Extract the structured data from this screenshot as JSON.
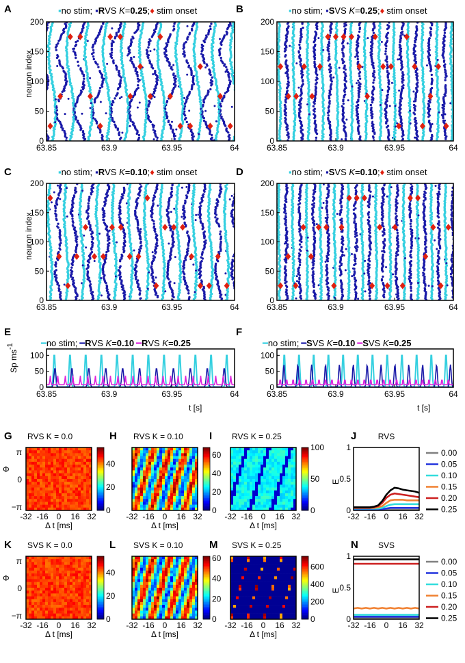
{
  "colors": {
    "nostim": "#35d0e0",
    "stim": "#1a1aa8",
    "onset": "#e02010",
    "magenta": "#dd22dd",
    "scatter_light": "#4fe3ec",
    "scatter_dark": "#1e2fc0"
  },
  "raster": [
    {
      "label": "A",
      "legend": {
        "a": "no stim;",
        "b": "R",
        "c": "VS ",
        "k": "K",
        "eq": "=",
        "val": "0.25",
        "semi": ";",
        "on": "stim onset"
      },
      "ylabel": "neuron index",
      "xticks": [
        "63.85",
        "63.9",
        "63.95",
        "64"
      ],
      "yticks": [
        "0",
        "50",
        "100",
        "150",
        "200"
      ],
      "xrange": [
        63.85,
        64
      ],
      "yrange": [
        0,
        200
      ],
      "period": 0.0145,
      "tilt": 0.0028,
      "onset_neurons": [
        25,
        75,
        125,
        175
      ]
    },
    {
      "label": "B",
      "legend": {
        "a": "no stim;",
        "b": "S",
        "c": "VS ",
        "k": "K",
        "eq": "=",
        "val": "0.25",
        "semi": ";",
        "on": "stim onset"
      },
      "ylabel": "",
      "xticks": [
        "63.85",
        "63.9",
        "63.95",
        "64"
      ],
      "yticks": [
        "0",
        "50",
        "100",
        "150",
        "200"
      ],
      "xrange": [
        63.85,
        64
      ],
      "yrange": [
        0,
        200
      ],
      "period": 0.0122,
      "tilt": 0.0008,
      "onset_neurons": [
        25,
        75,
        125,
        175
      ]
    },
    {
      "label": "C",
      "legend": {
        "a": "no stim;",
        "b": "R",
        "c": "VS ",
        "k": "K",
        "eq": "=",
        "val": "0.10",
        "semi": ";",
        "on": "stim onset"
      },
      "ylabel": "neuron index",
      "xticks": [
        "63.85",
        "63.9",
        "63.95",
        "64"
      ],
      "yticks": [
        "0",
        "50",
        "100",
        "150",
        "200"
      ],
      "xrange": [
        63.85,
        64
      ],
      "yrange": [
        0,
        200
      ],
      "period": 0.0128,
      "tilt": 0.0015,
      "onset_neurons": [
        25,
        75,
        125,
        175
      ]
    },
    {
      "label": "D",
      "legend": {
        "a": "no stim;",
        "b": "S",
        "c": "VS ",
        "k": "K",
        "eq": "=",
        "val": "0.10",
        "semi": ";",
        "on": "stim onset"
      },
      "ylabel": "",
      "xticks": [
        "63.85",
        "63.9",
        "63.95",
        "64"
      ],
      "yticks": [
        "0",
        "50",
        "100",
        "150",
        "200"
      ],
      "xrange": [
        63.85,
        64
      ],
      "yrange": [
        0,
        200
      ],
      "period": 0.0118,
      "tilt": 0.0005,
      "onset_neurons": [
        25,
        75,
        125,
        175
      ]
    }
  ],
  "rate": [
    {
      "label": "E",
      "ylabel_main": "Sp ms",
      "ylabel_sup": "-1",
      "xlabel": "t [s]",
      "legend": {
        "a": "no stim;",
        "b": "R",
        "c": "VS ",
        "k1": "K",
        "eq1": "=",
        "v1": "0.10",
        "d": "R",
        "e": "VS ",
        "k2": "K",
        "eq2": "=",
        "v2": "0.25"
      },
      "xticks": [
        "63.85",
        "63.9",
        "63.95",
        "64"
      ],
      "yticks": [
        "0",
        "50",
        "100"
      ],
      "xrange": [
        63.85,
        64
      ],
      "yrange": [
        0,
        120
      ],
      "series": [
        {
          "name": "no stim",
          "peak": 105,
          "period": 0.0125
        },
        {
          "name": "K=0.10",
          "peak": 60,
          "period": 0.0135
        },
        {
          "name": "K=0.25",
          "peak": 28,
          "period": 0.006
        }
      ]
    },
    {
      "label": "F",
      "ylabel_main": "",
      "ylabel_sup": "",
      "xlabel": "t [s]",
      "legend": {
        "a": "no stim;",
        "b": "S",
        "c": "VS ",
        "k1": "K",
        "eq1": "=",
        "v1": "0.10",
        "d": "S",
        "e": "VS ",
        "k2": "K",
        "eq2": "=",
        "v2": "0.25"
      },
      "xticks": [
        "63.85",
        "63.9",
        "63.95",
        "64"
      ],
      "yticks": [
        "0",
        "50",
        "100"
      ],
      "xrange": [
        63.85,
        64
      ],
      "yrange": [
        0,
        120
      ],
      "series": [
        {
          "name": "no stim",
          "peak": 105,
          "period": 0.0125
        },
        {
          "name": "K=0.10",
          "peak": 70,
          "period": 0.0118
        },
        {
          "name": "K=0.25",
          "peak": 20,
          "period": 0.0055
        }
      ]
    }
  ],
  "heat": [
    {
      "label": "G",
      "title": "RVS K = 0.0",
      "cbticks": [
        "0",
        "20",
        "40"
      ],
      "cbmax": 54,
      "kind": "uniform"
    },
    {
      "label": "H",
      "title": "RVS K = 0.10",
      "cbticks": [
        "0",
        "20",
        "40",
        "60"
      ],
      "cbmax": 68,
      "kind": "stripes"
    },
    {
      "label": "I",
      "title": "RVS K = 0.25",
      "cbticks": [
        "0",
        "50",
        "100"
      ],
      "cbmax": 100,
      "kind": "bands"
    },
    {
      "label": "K",
      "title": "SVS K = 0.0",
      "cbticks": [
        "0",
        "20",
        "40"
      ],
      "cbmax": 54,
      "kind": "uniform"
    },
    {
      "label": "L",
      "title": "SVS K = 0.10",
      "cbticks": [
        "0",
        "20",
        "40",
        "60"
      ],
      "cbmax": 62,
      "kind": "stripes"
    },
    {
      "label": "M",
      "title": "SVS K = 0.25",
      "cbticks": [
        "0",
        "200",
        "400",
        "600"
      ],
      "cbmax": 720,
      "kind": "lines"
    }
  ],
  "heat_axes": {
    "phi": "Φ",
    "yticks": [
      "π",
      "0",
      "−π"
    ],
    "xticks": [
      "-32",
      "-16",
      "0",
      "16",
      "32"
    ],
    "xlabel": "Δ t [ms]"
  },
  "chart_data": [
    {
      "type": "line",
      "panel": "J",
      "title": "RVS",
      "ylabel": "E",
      "x": [
        -32,
        -28,
        -24,
        -20,
        -16,
        -12,
        -8,
        -4,
        0,
        4,
        8,
        12,
        16,
        20,
        24,
        28,
        32
      ],
      "xticks": [
        "-32",
        "-16",
        "0",
        "16",
        "32"
      ],
      "yticks": [
        "0",
        "0.5",
        "1"
      ],
      "ylim": [
        0,
        1
      ],
      "series": [
        {
          "name": "0.00",
          "values": [
            0.01,
            0.01,
            0.01,
            0.01,
            0.01,
            0.01,
            0.01,
            0.01,
            0.01,
            0.01,
            0.01,
            0.01,
            0.01,
            0.01,
            0.01,
            0.01,
            0.01
          ]
        },
        {
          "name": "0.05",
          "values": [
            0.02,
            0.02,
            0.02,
            0.02,
            0.02,
            0.02,
            0.02,
            0.02,
            0.03,
            0.04,
            0.04,
            0.04,
            0.04,
            0.04,
            0.04,
            0.04,
            0.04
          ]
        },
        {
          "name": "0.10",
          "values": [
            0.03,
            0.03,
            0.03,
            0.03,
            0.03,
            0.03,
            0.03,
            0.04,
            0.07,
            0.09,
            0.1,
            0.1,
            0.1,
            0.1,
            0.1,
            0.1,
            0.1
          ]
        },
        {
          "name": "0.15",
          "values": [
            0.04,
            0.04,
            0.04,
            0.04,
            0.04,
            0.04,
            0.05,
            0.07,
            0.12,
            0.16,
            0.17,
            0.17,
            0.17,
            0.16,
            0.16,
            0.16,
            0.16
          ]
        },
        {
          "name": "0.20",
          "values": [
            0.04,
            0.04,
            0.04,
            0.04,
            0.04,
            0.05,
            0.07,
            0.12,
            0.2,
            0.25,
            0.27,
            0.26,
            0.25,
            0.24,
            0.23,
            0.22,
            0.21
          ]
        },
        {
          "name": "0.25",
          "values": [
            0.05,
            0.05,
            0.05,
            0.05,
            0.05,
            0.06,
            0.08,
            0.15,
            0.25,
            0.32,
            0.36,
            0.35,
            0.33,
            0.32,
            0.31,
            0.3,
            0.28
          ]
        }
      ]
    },
    {
      "type": "line",
      "panel": "N",
      "title": "SVS",
      "ylabel": "E",
      "x": [
        -32,
        -28,
        -24,
        -20,
        -16,
        -12,
        -8,
        -4,
        0,
        4,
        8,
        12,
        16,
        20,
        24,
        28,
        32
      ],
      "xticks": [
        "-32",
        "-16",
        "0",
        "16",
        "32"
      ],
      "yticks": [
        "0",
        "0.5",
        "1"
      ],
      "ylim": [
        0,
        1
      ],
      "series": [
        {
          "name": "0.00",
          "values": [
            0.02,
            0.02,
            0.02,
            0.02,
            0.02,
            0.02,
            0.02,
            0.02,
            0.02,
            0.02,
            0.02,
            0.02,
            0.02,
            0.02,
            0.02,
            0.02,
            0.02
          ]
        },
        {
          "name": "0.05",
          "values": [
            0.04,
            0.04,
            0.04,
            0.04,
            0.04,
            0.04,
            0.04,
            0.04,
            0.04,
            0.04,
            0.04,
            0.04,
            0.04,
            0.04,
            0.04,
            0.04,
            0.04
          ]
        },
        {
          "name": "0.10",
          "values": [
            0.07,
            0.07,
            0.07,
            0.07,
            0.07,
            0.07,
            0.07,
            0.07,
            0.07,
            0.07,
            0.07,
            0.07,
            0.07,
            0.07,
            0.07,
            0.07,
            0.07
          ]
        },
        {
          "name": "0.15",
          "values": [
            0.17,
            0.18,
            0.17,
            0.18,
            0.17,
            0.18,
            0.17,
            0.18,
            0.17,
            0.18,
            0.17,
            0.18,
            0.17,
            0.18,
            0.17,
            0.18,
            0.17
          ]
        },
        {
          "name": "0.20",
          "values": [
            0.88,
            0.88,
            0.88,
            0.88,
            0.88,
            0.88,
            0.88,
            0.88,
            0.88,
            0.88,
            0.88,
            0.88,
            0.88,
            0.88,
            0.88,
            0.88,
            0.88
          ]
        },
        {
          "name": "0.25",
          "values": [
            0.95,
            0.95,
            0.95,
            0.95,
            0.95,
            0.95,
            0.95,
            0.95,
            0.95,
            0.95,
            0.95,
            0.95,
            0.95,
            0.95,
            0.95,
            0.95,
            0.95
          ]
        }
      ]
    }
  ],
  "legend_colors": {
    "0.00": "#808080",
    "0.05": "#2233dd",
    "0.10": "#33dddd",
    "0.15": "#f08030",
    "0.20": "#cc2020",
    "0.25": "#000000"
  }
}
